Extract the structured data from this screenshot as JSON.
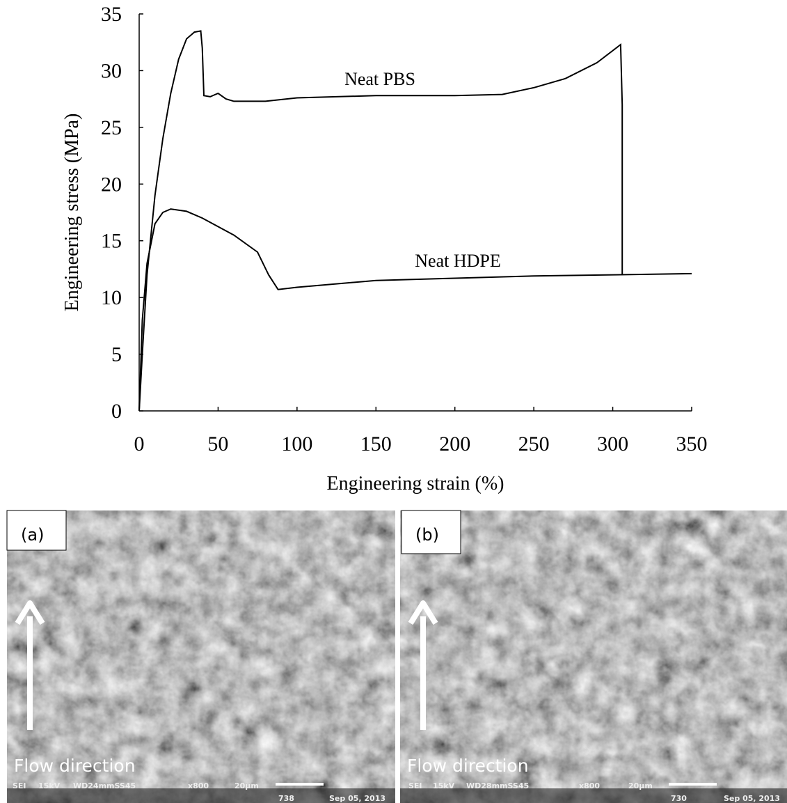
{
  "chart_data": {
    "type": "line",
    "xlabel": "Engineering strain (%)",
    "ylabel": "Engineering stress (MPa)",
    "xlim": [
      0,
      350
    ],
    "xticks": [
      0,
      50,
      100,
      150,
      200,
      250,
      300,
      350
    ],
    "ylim": [
      0,
      35
    ],
    "yticks": [
      0,
      5,
      10,
      15,
      20,
      25,
      30,
      35
    ],
    "grid": false,
    "series": [
      {
        "name": "Neat PBS",
        "color": "#000000",
        "x": [
          0,
          2,
          5,
          10,
          15,
          20,
          25,
          30,
          35,
          39,
          40,
          41,
          45,
          50,
          55,
          60,
          80,
          100,
          150,
          200,
          230,
          250,
          270,
          290,
          305,
          306,
          306
        ],
        "values": [
          0,
          5,
          12,
          19,
          24,
          28,
          31,
          32.8,
          33.4,
          33.5,
          32,
          27.8,
          27.7,
          28,
          27.5,
          27.3,
          27.3,
          27.6,
          27.8,
          27.8,
          27.9,
          28.5,
          29.3,
          30.7,
          32.3,
          27,
          12
        ]
      },
      {
        "name": "Neat HDPE",
        "color": "#000000",
        "x": [
          0,
          2,
          5,
          10,
          15,
          20,
          30,
          40,
          60,
          75,
          82,
          88,
          100,
          150,
          200,
          250,
          300,
          350
        ],
        "values": [
          0,
          8,
          13,
          16.5,
          17.5,
          17.8,
          17.6,
          17,
          15.5,
          14,
          12,
          10.7,
          10.9,
          11.5,
          11.7,
          11.9,
          12,
          12.1
        ]
      }
    ]
  },
  "panels": [
    {
      "label": "(a)",
      "caption": "Flow direction",
      "info": [
        "SEI",
        "15kV",
        "WD24mmSS45",
        "x800",
        "20µm",
        "738",
        "Sep 05, 2013"
      ]
    },
    {
      "label": "(b)",
      "caption": "Flow direction",
      "info": [
        "SEI",
        "15kV",
        "WD28mmSS45",
        "x800",
        "20µm",
        "730",
        "Sep 05, 2013"
      ]
    }
  ]
}
